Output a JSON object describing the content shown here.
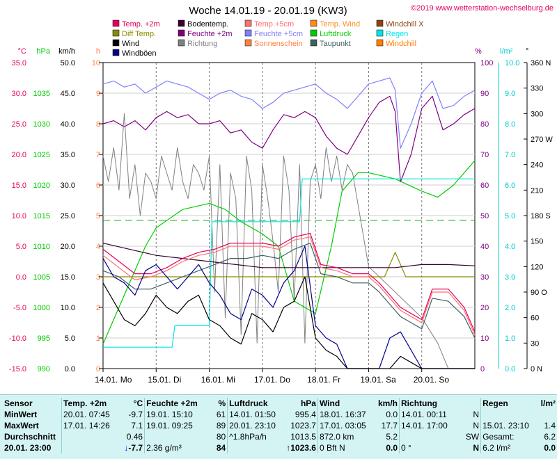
{
  "chart_data": {
    "type": "line",
    "title": "Woche 14.01.19 - 20.01.19 (KW3)",
    "copyright": "©2019 www.wetterstation-wechselburg.de",
    "x_ticks": [
      "14.01. Mo",
      "15.01. Di",
      "16.01. Mi",
      "17.01. Do",
      "18.01. Fr",
      "19.01. Sa",
      "20.01. So"
    ],
    "x_range_days": [
      0,
      7
    ],
    "legend": [
      {
        "label": "Temp. +2m",
        "color": "#e6005c"
      },
      {
        "label": "Bodentemp.",
        "color": "#3a0030"
      },
      {
        "label": "Temp.+5cm",
        "color": "#ff7070"
      },
      {
        "label": "Temp. Wind",
        "color": "#ff8c1a"
      },
      {
        "label": "Windchill X",
        "color": "#8b4513"
      },
      {
        "label": "Diff Temp.",
        "color": "#8b8b00"
      },
      {
        "label": "Feuchte +2m",
        "color": "#800080"
      },
      {
        "label": "Feuchte +5cm",
        "color": "#8080ff"
      },
      {
        "label": "Luftdruck",
        "color": "#00cc00"
      },
      {
        "label": "Regen",
        "color": "#00e5e5"
      },
      {
        "label": "Wind",
        "color": "#000000"
      },
      {
        "label": "Richtung",
        "color": "#808080"
      },
      {
        "label": "Sonnenschein",
        "color": "#ff8040"
      },
      {
        "label": "Taupunkt",
        "color": "#406060"
      },
      {
        "label": "Windchill",
        "color": "#ff7f00"
      },
      {
        "label": "Windböen",
        "color": "#00008b"
      }
    ],
    "axes": {
      "temp": {
        "unit": "°C",
        "color": "#e6005c",
        "range": [
          -15,
          35
        ],
        "ticks": [
          "35.0",
          "30.0",
          "25.0",
          "20.0",
          "15.0",
          "10.0",
          "5.0",
          "0.0",
          "-5.0",
          "-10.0",
          "-15.0"
        ]
      },
      "pressure": {
        "unit": "hPa",
        "color": "#00cc00",
        "range": [
          990,
          1040
        ],
        "ticks": [
          "1035",
          "1030",
          "1025",
          "1020",
          "1015",
          "1010",
          "1005",
          "1000",
          "995",
          "990"
        ]
      },
      "wind": {
        "unit": "km/h",
        "color": "#000000",
        "range": [
          0,
          50
        ],
        "ticks": [
          "50.0",
          "45.0",
          "40.0",
          "35.0",
          "30.0",
          "25.0",
          "20.0",
          "15.0",
          "10.0",
          "5.0",
          "0.0"
        ]
      },
      "sun": {
        "unit": "h",
        "color": "#ff8040",
        "range": [
          0,
          10
        ],
        "ticks": [
          "10",
          "9",
          "8",
          "7",
          "6",
          "5",
          "4",
          "3",
          "2",
          "1",
          "0"
        ]
      },
      "humidity": {
        "unit": "%",
        "color": "#800080",
        "range": [
          0,
          100
        ],
        "ticks": [
          "100",
          "90",
          "80",
          "70",
          "60",
          "50",
          "40",
          "30",
          "20",
          "10",
          "0"
        ]
      },
      "rain": {
        "unit": "l/m²",
        "color": "#00cccc",
        "range": [
          0,
          10
        ],
        "ticks": [
          "10.0",
          "9.0",
          "8.0",
          "7.0",
          "6.0",
          "5.0",
          "4.0",
          "3.0",
          "2.0",
          "1.0",
          "0.0"
        ]
      },
      "direction": {
        "unit": "°",
        "color": "#000000",
        "range": [
          0,
          360
        ],
        "ticks": [
          "360 N",
          "330",
          "300",
          "270 W",
          "240",
          "210",
          "180 S",
          "150",
          "120",
          "90 O",
          "60",
          "30",
          "0 N"
        ]
      }
    },
    "series": [
      {
        "name": "Feuchte +5cm",
        "axis": "humidity",
        "x": [
          0,
          0.2,
          0.4,
          0.6,
          0.8,
          1.0,
          1.2,
          1.4,
          1.6,
          1.8,
          2.0,
          2.2,
          2.4,
          2.6,
          2.8,
          3.0,
          3.2,
          3.4,
          3.6,
          3.8,
          4.0,
          4.2,
          4.4,
          4.6,
          4.8,
          5.0,
          5.2,
          5.4,
          5.5,
          5.6,
          5.8,
          6.0,
          6.2,
          6.4,
          6.6,
          6.8,
          7.0
        ],
        "y": [
          93,
          94,
          92,
          93,
          90,
          92,
          94,
          93,
          92,
          90,
          88,
          90,
          91,
          89,
          88,
          85,
          87,
          90,
          91,
          92,
          93,
          90,
          88,
          85,
          89,
          93,
          94,
          95,
          91,
          72,
          80,
          90,
          94,
          85,
          86,
          89,
          91
        ]
      },
      {
        "name": "Feuchte +2m",
        "axis": "humidity",
        "x": [
          0,
          0.2,
          0.4,
          0.6,
          0.8,
          1.0,
          1.2,
          1.4,
          1.6,
          1.8,
          2.0,
          2.2,
          2.4,
          2.6,
          2.8,
          3.0,
          3.2,
          3.4,
          3.6,
          3.8,
          4.0,
          4.2,
          4.4,
          4.6,
          4.8,
          5.0,
          5.2,
          5.4,
          5.5,
          5.6,
          5.8,
          6.0,
          6.2,
          6.4,
          6.6,
          6.8,
          7.0
        ],
        "y": [
          80,
          81,
          79,
          81,
          78,
          82,
          84,
          82,
          83,
          80,
          80,
          81,
          77,
          78,
          74,
          72,
          78,
          83,
          82,
          84,
          82,
          76,
          72,
          70,
          76,
          82,
          87,
          89,
          84,
          61,
          70,
          85,
          89,
          78,
          80,
          83,
          85
        ]
      },
      {
        "name": "Luftdruck",
        "axis": "pressure",
        "x": [
          0,
          0.5,
          0.8,
          1.0,
          1.5,
          2.0,
          2.3,
          2.6,
          3.0,
          3.3,
          3.6,
          4.0,
          4.3,
          4.5,
          4.8,
          5.0,
          5.5,
          6.0,
          6.3,
          6.6,
          7.0
        ],
        "y": [
          994,
          1004,
          1010,
          1013,
          1016,
          1017,
          1016,
          1014,
          1012,
          1010,
          1001,
          999,
          1010,
          1019,
          1022,
          1022,
          1021,
          1019,
          1018,
          1020,
          1024
        ]
      },
      {
        "name": "Temp. +2m",
        "axis": "temp",
        "x": [
          0,
          0.3,
          0.6,
          0.9,
          1.2,
          1.5,
          1.8,
          2.1,
          2.4,
          2.7,
          3.0,
          3.3,
          3.6,
          3.9,
          4.1,
          4.4,
          4.7,
          5.0,
          5.2,
          5.4,
          5.6,
          5.8,
          6.0,
          6.2,
          6.5,
          6.8,
          7.0
        ],
        "y": [
          4.5,
          2.5,
          0.5,
          0.5,
          1.5,
          3.0,
          4.0,
          4.5,
          5.5,
          5.5,
          5.5,
          5.0,
          6.5,
          7.1,
          2.0,
          1.5,
          0.5,
          0.5,
          -1,
          -3,
          -5,
          -6,
          -7,
          -2,
          -2,
          -5,
          -9
        ]
      },
      {
        "name": "Temp.+5cm",
        "axis": "temp",
        "x": [
          0,
          0.3,
          0.6,
          0.9,
          1.2,
          1.5,
          1.8,
          2.1,
          2.4,
          2.7,
          3.0,
          3.3,
          3.6,
          3.9,
          4.1,
          4.4,
          4.7,
          5.0,
          5.2,
          5.4,
          5.6,
          5.8,
          6.0,
          6.2,
          6.5,
          6.8,
          7.0
        ],
        "y": [
          3.5,
          1.5,
          -0.5,
          0,
          1.0,
          2.5,
          3.5,
          4.0,
          5.0,
          5.0,
          5.0,
          4.5,
          6.0,
          6.5,
          1.5,
          1.0,
          0,
          0,
          -1.5,
          -3.5,
          -5.5,
          -6.5,
          -7.5,
          -2.5,
          -2.5,
          -5.5,
          -9.5
        ]
      },
      {
        "name": "Taupunkt",
        "axis": "temp",
        "x": [
          0,
          0.3,
          0.6,
          0.9,
          1.2,
          1.5,
          1.8,
          2.1,
          2.4,
          2.7,
          3.0,
          3.3,
          3.6,
          3.9,
          4.1,
          4.4,
          4.7,
          5.0,
          5.2,
          5.4,
          5.6,
          5.8,
          6.0,
          6.2,
          6.5,
          6.8,
          7.0
        ],
        "y": [
          1,
          0,
          -2,
          -2,
          -1,
          0,
          1,
          2,
          3,
          3,
          3.5,
          3,
          4.5,
          5.5,
          0.5,
          0,
          -1,
          -1,
          -2.5,
          -4.5,
          -6.5,
          -7.5,
          -8.5,
          -3.5,
          -4,
          -6.5,
          -10
        ]
      },
      {
        "name": "Bodentemp.",
        "axis": "temp",
        "x": [
          0,
          0.5,
          1,
          1.5,
          2,
          2.5,
          3,
          3.5,
          4,
          4.5,
          5,
          5.5,
          6,
          6.5,
          7
        ],
        "y": [
          5.5,
          4.5,
          3.5,
          3,
          2.5,
          2,
          1.5,
          1.5,
          1.5,
          1.5,
          1.5,
          1.5,
          2,
          2,
          1.8
        ]
      },
      {
        "name": "Diff Temp.",
        "axis": "temp",
        "x": [
          0,
          1,
          2,
          3,
          4,
          4.5,
          5,
          5.3,
          5.5,
          5.7,
          6,
          7
        ],
        "y": [
          0,
          0,
          0,
          0,
          0,
          0,
          0,
          0,
          4,
          0,
          0,
          0
        ]
      },
      {
        "name": "Regen",
        "axis": "rain",
        "x": [
          0,
          0.3,
          0.5,
          1.3,
          1.35,
          1.5,
          2.0,
          2.05,
          3.0,
          3.05,
          3.7,
          3.75,
          4.0,
          5.0,
          6.0,
          7.0
        ],
        "y": [
          0.7,
          0.7,
          0.7,
          0.7,
          1.4,
          1.4,
          1.4,
          4.8,
          4.8,
          4.8,
          4.8,
          6.2,
          6.2,
          6.2,
          6.2,
          6.2
        ]
      },
      {
        "name": "Wind",
        "axis": "wind",
        "x": [
          0,
          0.2,
          0.4,
          0.6,
          0.8,
          1.0,
          1.2,
          1.4,
          1.6,
          1.8,
          2.0,
          2.2,
          2.4,
          2.6,
          2.8,
          3.0,
          3.2,
          3.4,
          3.6,
          3.8,
          4.0,
          4.2,
          4.4,
          4.6,
          4.8,
          5.0,
          5.2,
          5.4,
          5.6,
          5.8,
          6.0,
          6.2,
          6.4,
          6.6,
          6.8,
          7.0
        ],
        "y": [
          14,
          11,
          8,
          7,
          9,
          12,
          10,
          9,
          11,
          12,
          8,
          7,
          5,
          4,
          9,
          8,
          6,
          10,
          11,
          15,
          5,
          3,
          2,
          0,
          0,
          0,
          0,
          0,
          2,
          1,
          0,
          0,
          0,
          0,
          0,
          0
        ]
      },
      {
        "name": "Windböen",
        "axis": "wind",
        "x": [
          0,
          0.2,
          0.4,
          0.6,
          0.8,
          1.0,
          1.2,
          1.4,
          1.6,
          1.8,
          2.0,
          2.2,
          2.4,
          2.6,
          2.8,
          3.0,
          3.2,
          3.4,
          3.6,
          3.8,
          4.0,
          4.2,
          4.4,
          4.6,
          4.8,
          5.0,
          5.2,
          5.4,
          5.6,
          5.8,
          6.0,
          6.2,
          6.4,
          6.6,
          6.8,
          7.0
        ],
        "y": [
          18,
          15,
          14,
          12,
          16,
          17,
          15,
          13,
          15,
          17,
          14,
          12,
          9,
          8,
          13,
          12,
          10,
          14,
          16,
          20,
          7,
          5,
          4,
          0,
          0,
          0,
          0,
          5,
          6,
          3,
          0,
          0,
          0,
          0,
          0,
          0
        ]
      },
      {
        "name": "Richtung",
        "axis": "direction",
        "x": [
          0,
          0.1,
          0.2,
          0.3,
          0.4,
          0.5,
          0.6,
          0.7,
          0.8,
          0.9,
          1.0,
          1.1,
          1.2,
          1.3,
          1.4,
          1.5,
          1.6,
          1.7,
          1.8,
          1.9,
          2.0,
          2.1,
          2.2,
          2.3,
          2.4,
          2.5,
          2.6,
          2.7,
          2.8,
          2.9,
          3.0,
          3.1,
          3.2,
          3.3,
          3.4,
          3.5,
          3.6,
          3.7,
          3.8,
          3.9,
          4.0,
          4.1,
          4.2,
          4.3,
          4.4,
          4.5,
          4.6,
          4.7,
          5.0,
          5.5,
          6.0,
          6.3,
          6.5,
          7.0
        ],
        "y": [
          250,
          220,
          260,
          210,
          300,
          200,
          240,
          180,
          230,
          220,
          200,
          250,
          230,
          210,
          260,
          220,
          200,
          240,
          230,
          210,
          250,
          90,
          240,
          60,
          230,
          200,
          40,
          250,
          210,
          30,
          240,
          200,
          150,
          90,
          250,
          210,
          80,
          240,
          30,
          220,
          240,
          200,
          260,
          220,
          250,
          210,
          240,
          230,
          120,
          90,
          60,
          30,
          0,
          0
        ]
      }
    ]
  },
  "stats": {
    "header": {
      "sensor": "Sensor",
      "temp": "Temp. +2m",
      "temp_unit": "°C",
      "hum": "Feuchte +2m",
      "hum_unit": "%",
      "press": "Luftdruck",
      "press_unit": "hPa",
      "wind": "Wind",
      "wind_unit": "km/h",
      "dir": "Richtung",
      "rain": "Regen",
      "rain_unit": "l/m²"
    },
    "min": {
      "label": "MinWert",
      "temp_time": "20.01. 07:45",
      "temp_val": "-9.7",
      "hum_time": "19.01. 15:10",
      "hum_val": "61",
      "press_time": "14.01. 01:50",
      "press_val": "995.4",
      "wind_time": "18.01. 16:37",
      "wind_val": "0.0",
      "dir_time": "14.01. 00:11",
      "dir_val": "N"
    },
    "max": {
      "label": "MaxWert",
      "temp_time": "17.01. 14:26",
      "temp_val": "7.1",
      "hum_time": "19.01. 09:25",
      "hum_val": "89",
      "press_time": "20.01. 23:10",
      "press_val": "1023.7",
      "wind_time": "17.01. 03:05",
      "wind_val": "17.7",
      "dir_time": "14.01. 17:00",
      "dir_val": "N",
      "rain_time": "15.01. 23:10",
      "rain_val": "1.4"
    },
    "avg": {
      "label": "Durchschnitt",
      "temp_val": "0.46",
      "hum_val": "80",
      "press_note": "^1.8hPa/h",
      "press_val": "1013.5",
      "wind_dist": "872.0 km",
      "wind_val": "5.2",
      "dir_val": "SW",
      "rain_label": "Gesamt:",
      "rain_val": "6.2"
    },
    "now": {
      "label": "20.01. 23:00",
      "temp_arrow": "↓",
      "temp_val": "-7.7",
      "hum_abs": "2.36 g/m³",
      "hum_val": "84",
      "press_arrow": "↑",
      "press_val": "1023.6",
      "wind_bft": "0 Bft N",
      "wind_val": "0.0",
      "dir_deg": "0 °",
      "dir_val": "N",
      "rain_label": "6.2 l/m²",
      "rain_val": "0.0"
    }
  }
}
